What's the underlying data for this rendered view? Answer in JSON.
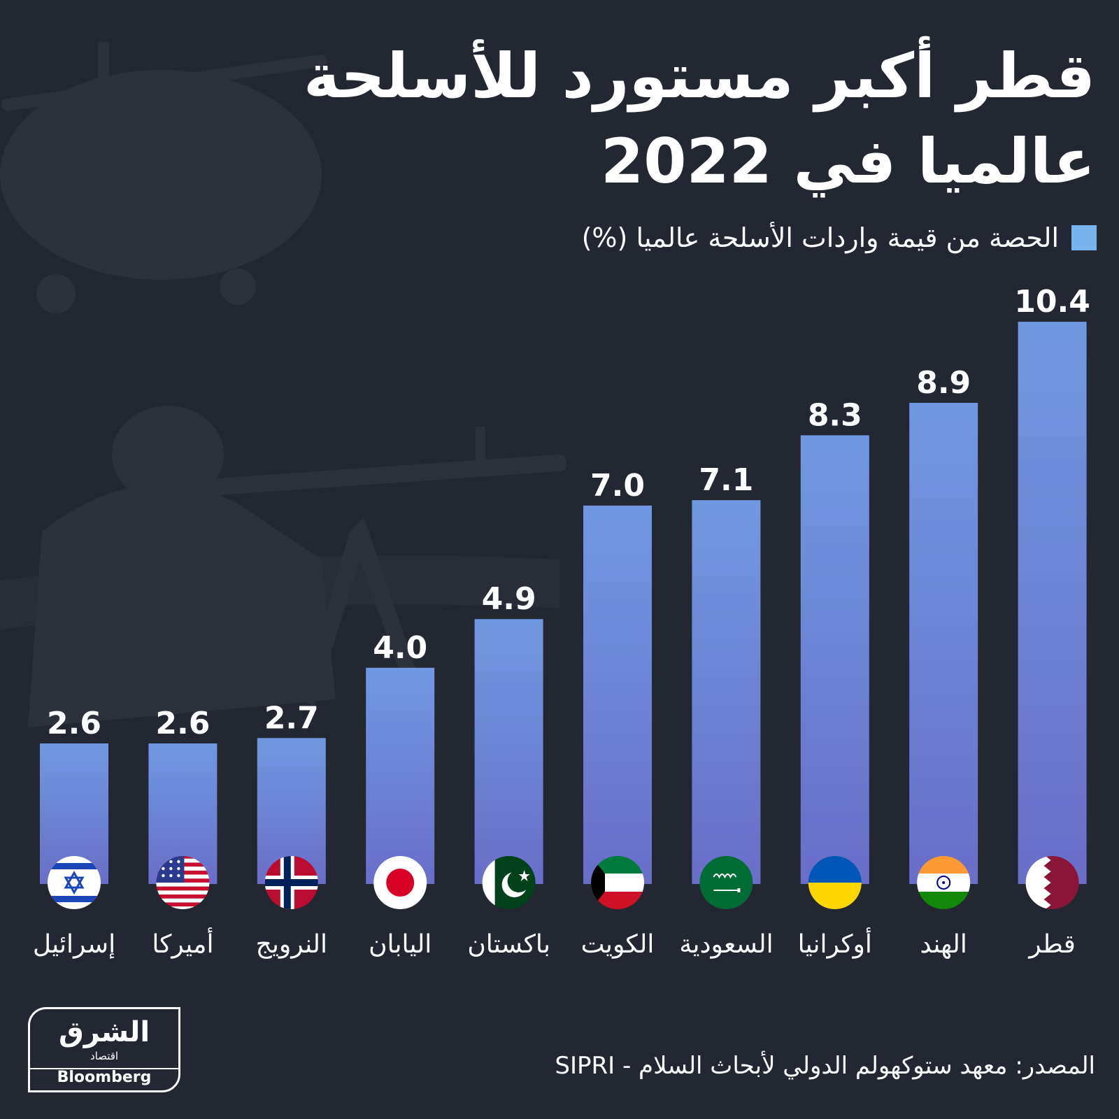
{
  "title": "قطر أكبر مستورد للأسلحة عالميا في 2022",
  "legend": {
    "label": "الحصة من قيمة واردات الأسلحة عالميا (%)",
    "color": "#7ab4ee"
  },
  "chart_data": {
    "type": "bar",
    "title": "قطر أكبر مستورد للأسلحة عالميا في 2022",
    "categories": [
      "إسرائيل",
      "أميركا",
      "النرويج",
      "اليابان",
      "باكستان",
      "الكويت",
      "السعودية",
      "أوكرانيا",
      "الهند",
      "قطر"
    ],
    "series": [
      {
        "name": "الحصة من قيمة واردات الأسلحة عالميا (%)",
        "values": [
          2.6,
          2.6,
          2.7,
          4.0,
          4.9,
          7.0,
          7.1,
          8.3,
          8.9,
          10.4
        ],
        "labels": [
          "2.6",
          "2.6",
          "2.7",
          "4.0",
          "4.9",
          "7.0",
          "7.1",
          "8.3",
          "8.9",
          "10.4"
        ]
      }
    ],
    "flags": [
      "israel-flag-icon",
      "usa-flag-icon",
      "norway-flag-icon",
      "japan-flag-icon",
      "pakistan-flag-icon",
      "kuwait-flag-icon",
      "saudi-flag-icon",
      "ukraine-flag-icon",
      "india-flag-icon",
      "qatar-flag-icon"
    ],
    "ylim": [
      0,
      12
    ],
    "bar_color_top": "#7098e2",
    "bar_color_bottom": "#6a6ec8",
    "grid": false,
    "legend_position": "top-right"
  },
  "logo": {
    "arabic": "الشرق",
    "sub": "اقتصاد",
    "english": "Bloomberg"
  },
  "source": "المصدر: معهد ستوكهولم الدولي لأبحاث السلام - SIPRI"
}
